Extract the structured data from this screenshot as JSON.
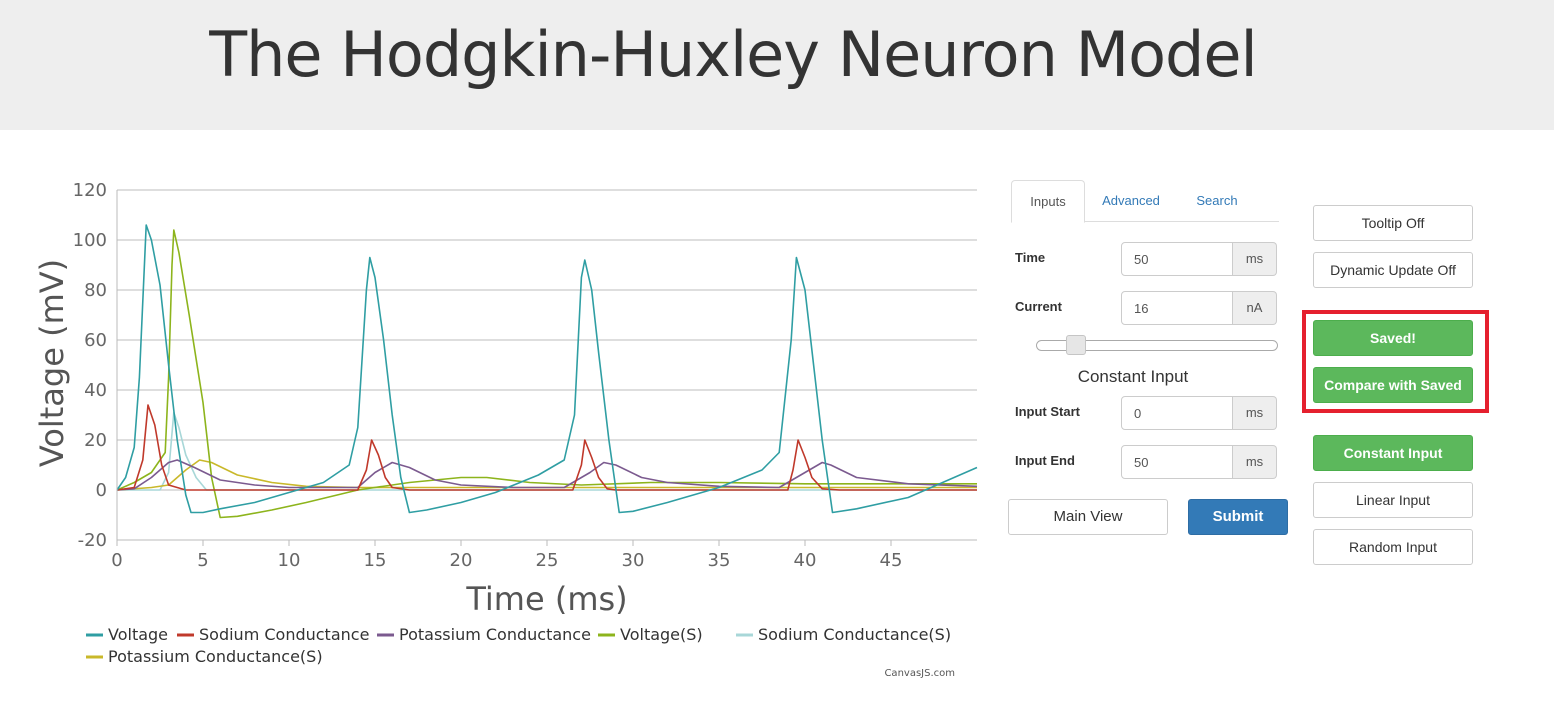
{
  "header": {
    "title": "The Hodgkin-Huxley Neuron Model"
  },
  "tabs": [
    {
      "label": "Inputs",
      "active": true
    },
    {
      "label": "Advanced",
      "active": false
    },
    {
      "label": "Search",
      "active": false
    }
  ],
  "form": {
    "time": {
      "label": "Time",
      "value": "50",
      "unit": "ms"
    },
    "current": {
      "label": "Current",
      "value": "16",
      "unit": "nA"
    },
    "slider": {
      "level": 0.16
    },
    "constant_heading": "Constant Input",
    "input_start": {
      "label": "Input Start",
      "value": "0",
      "unit": "ms"
    },
    "input_end": {
      "label": "Input End",
      "value": "50",
      "unit": "ms"
    },
    "main_view_label": "Main View",
    "submit_label": "Submit"
  },
  "controls": {
    "tooltip_label": "Tooltip Off",
    "dynamic_label": "Dynamic Update Off",
    "saved_label": "Saved!",
    "compare_label": "Compare with Saved",
    "constant_label": "Constant Input",
    "linear_label": "Linear Input",
    "random_label": "Random Input"
  },
  "colors": {
    "voltage": "#2f9ea3",
    "sodium": "#c0392b",
    "potassium": "#7b5a8f",
    "voltage_s": "#8db41c",
    "sodium_s": "#a8d7d8",
    "potassium_s": "#c9b82a",
    "highlight": "#e5202e"
  },
  "chart_data": {
    "type": "line",
    "xlabel": "Time (ms)",
    "ylabel": "Voltage (mV)",
    "xlim": [
      0,
      50
    ],
    "ylim": [
      -20,
      120
    ],
    "xticks": [
      "0",
      "5",
      "10",
      "15",
      "20",
      "25",
      "30",
      "35",
      "40",
      "45"
    ],
    "yticks": [
      "-20",
      "0",
      "20",
      "40",
      "60",
      "80",
      "100",
      "120"
    ],
    "grid": true,
    "legend": "bottom-left",
    "credit": "CanvasJS.com",
    "series": [
      {
        "name": "Voltage",
        "points": [
          [
            0,
            0
          ],
          [
            0.5,
            5
          ],
          [
            1,
            17
          ],
          [
            1.3,
            45
          ],
          [
            1.7,
            106
          ],
          [
            2,
            100
          ],
          [
            2.5,
            82
          ],
          [
            3,
            50
          ],
          [
            3.5,
            20
          ],
          [
            4,
            -2
          ],
          [
            4.3,
            -9
          ],
          [
            5,
            -9
          ],
          [
            6,
            -7.5
          ],
          [
            8,
            -5
          ],
          [
            10,
            -1
          ],
          [
            12,
            3
          ],
          [
            13.5,
            10
          ],
          [
            14,
            25
          ],
          [
            14.5,
            80
          ],
          [
            14.7,
            93
          ],
          [
            15,
            85
          ],
          [
            15.5,
            60
          ],
          [
            16,
            30
          ],
          [
            16.5,
            5
          ],
          [
            17,
            -9
          ],
          [
            18,
            -8
          ],
          [
            20,
            -5
          ],
          [
            22,
            -1
          ],
          [
            24.5,
            6
          ],
          [
            26,
            12
          ],
          [
            26.6,
            30
          ],
          [
            27,
            85
          ],
          [
            27.2,
            92
          ],
          [
            27.6,
            80
          ],
          [
            28,
            55
          ],
          [
            28.6,
            20
          ],
          [
            29.2,
            -9
          ],
          [
            30,
            -8.5
          ],
          [
            32,
            -5
          ],
          [
            35,
            1
          ],
          [
            37.5,
            8
          ],
          [
            38.5,
            15
          ],
          [
            39.2,
            60
          ],
          [
            39.5,
            93
          ],
          [
            40,
            80
          ],
          [
            40.5,
            50
          ],
          [
            41,
            20
          ],
          [
            41.6,
            -9
          ],
          [
            43,
            -7.5
          ],
          [
            46,
            -3
          ],
          [
            48,
            3
          ],
          [
            50,
            9
          ]
        ]
      },
      {
        "name": "Sodium Conductance",
        "points": [
          [
            0,
            0
          ],
          [
            1,
            1
          ],
          [
            1.5,
            12
          ],
          [
            1.8,
            34
          ],
          [
            2.2,
            26
          ],
          [
            2.6,
            10
          ],
          [
            3,
            2
          ],
          [
            4,
            0
          ],
          [
            14,
            0
          ],
          [
            14.5,
            8
          ],
          [
            14.8,
            20
          ],
          [
            15.2,
            14
          ],
          [
            15.6,
            5
          ],
          [
            16,
            1
          ],
          [
            17,
            0
          ],
          [
            26.5,
            0
          ],
          [
            27,
            10
          ],
          [
            27.2,
            20
          ],
          [
            27.6,
            13
          ],
          [
            28,
            5
          ],
          [
            28.5,
            0.5
          ],
          [
            29,
            0
          ],
          [
            39,
            0
          ],
          [
            39.3,
            8
          ],
          [
            39.6,
            20
          ],
          [
            40,
            13
          ],
          [
            40.4,
            5
          ],
          [
            41,
            0.5
          ],
          [
            42,
            0
          ],
          [
            50,
            0
          ]
        ]
      },
      {
        "name": "Potassium Conductance",
        "points": [
          [
            0,
            0
          ],
          [
            1,
            0.5
          ],
          [
            2,
            5
          ],
          [
            3,
            11
          ],
          [
            3.5,
            12
          ],
          [
            4.5,
            9
          ],
          [
            6,
            4
          ],
          [
            8,
            2
          ],
          [
            10,
            1
          ],
          [
            14,
            1
          ],
          [
            15,
            7
          ],
          [
            16,
            11
          ],
          [
            17,
            9
          ],
          [
            18.5,
            4
          ],
          [
            20,
            2
          ],
          [
            23,
            1
          ],
          [
            26,
            1
          ],
          [
            27.5,
            7
          ],
          [
            28.3,
            11
          ],
          [
            29,
            10
          ],
          [
            30.5,
            5
          ],
          [
            32,
            3
          ],
          [
            35,
            1.5
          ],
          [
            38.5,
            1
          ],
          [
            40,
            7
          ],
          [
            41,
            11
          ],
          [
            41.5,
            10
          ],
          [
            43,
            5
          ],
          [
            46,
            2.5
          ],
          [
            50,
            1.5
          ]
        ]
      },
      {
        "name": "Voltage(S)",
        "points": [
          [
            0,
            0
          ],
          [
            1,
            3
          ],
          [
            2,
            7
          ],
          [
            2.8,
            15
          ],
          [
            3,
            45
          ],
          [
            3.2,
            90
          ],
          [
            3.3,
            104
          ],
          [
            3.6,
            95
          ],
          [
            4.2,
            70
          ],
          [
            5,
            35
          ],
          [
            5.5,
            5
          ],
          [
            6,
            -11
          ],
          [
            7,
            -10.5
          ],
          [
            9,
            -8
          ],
          [
            11,
            -5
          ],
          [
            14,
            0
          ],
          [
            17,
            3
          ],
          [
            20,
            5
          ],
          [
            21.5,
            5
          ],
          [
            24,
            3
          ],
          [
            27,
            2
          ],
          [
            31,
            3
          ],
          [
            35,
            3
          ],
          [
            40,
            2.5
          ],
          [
            45,
            2.5
          ],
          [
            50,
            2.5
          ]
        ]
      },
      {
        "name": "Sodium Conductance(S)",
        "points": [
          [
            0,
            0
          ],
          [
            2.5,
            0
          ],
          [
            3,
            7
          ],
          [
            3.3,
            31
          ],
          [
            3.6,
            25
          ],
          [
            4,
            14
          ],
          [
            4.6,
            5
          ],
          [
            5.2,
            0
          ],
          [
            6,
            0
          ],
          [
            50,
            0
          ]
        ]
      },
      {
        "name": "Potassium Conductance(S)",
        "points": [
          [
            0,
            0
          ],
          [
            2,
            1
          ],
          [
            3,
            2
          ],
          [
            4,
            8
          ],
          [
            4.8,
            12
          ],
          [
            5.5,
            11
          ],
          [
            7,
            6
          ],
          [
            9,
            3
          ],
          [
            11,
            1.5
          ],
          [
            14,
            1
          ],
          [
            20,
            1
          ],
          [
            25,
            1
          ],
          [
            30,
            1
          ],
          [
            35,
            1
          ],
          [
            40,
            1
          ],
          [
            45,
            1
          ],
          [
            50,
            1
          ]
        ]
      }
    ]
  }
}
